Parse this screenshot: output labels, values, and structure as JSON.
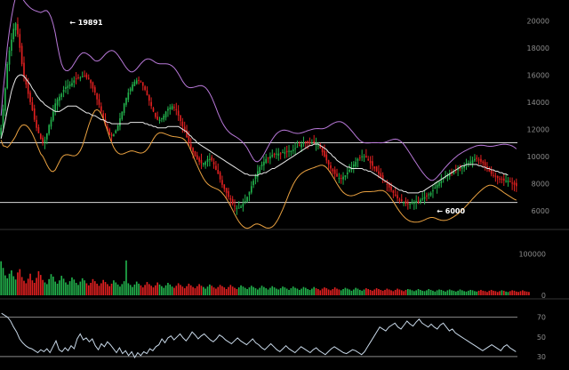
{
  "chart_data": [
    {
      "type": "candlestick",
      "panel": "price",
      "ylim": [
        5000,
        21000
      ],
      "yticks": [
        "20000",
        "18000",
        "16000",
        "14000",
        "12000",
        "10000",
        "8000",
        "6000"
      ],
      "grid": false,
      "horizontal_levels": [
        11000,
        6600
      ],
      "annotations": [
        {
          "text": "← 19891",
          "bar": 32,
          "value": 19891
        },
        {
          "text": "← 6000",
          "bar": 208,
          "value": 6000
        }
      ],
      "close": [
        12100,
        13500,
        15000,
        16800,
        17800,
        18600,
        19400,
        19800,
        19000,
        18000,
        16800,
        15900,
        15300,
        14600,
        14000,
        13400,
        12700,
        12100,
        11700,
        11300,
        11000,
        11200,
        11700,
        12300,
        12700,
        13300,
        13900,
        14200,
        14400,
        14600,
        14900,
        15100,
        15200,
        15300,
        15400,
        15600,
        15700,
        15800,
        15800,
        15900,
        15900,
        15800,
        15700,
        15400,
        15000,
        14700,
        14200,
        13800,
        13300,
        12800,
        12300,
        11900,
        11600,
        11500,
        11600,
        11900,
        12300,
        12800,
        13300,
        13900,
        14300,
        14700,
        15000,
        15300,
        15500,
        15600,
        15600,
        15500,
        15200,
        14900,
        14500,
        14100,
        13700,
        13300,
        12900,
        12700,
        12700,
        12800,
        13000,
        13300,
        13500,
        13600,
        13700,
        13600,
        13400,
        13000,
        12600,
        12200,
        11800,
        11400,
        11000,
        10600,
        10300,
        10000,
        9800,
        9600,
        9500,
        9500,
        9600,
        9800,
        9800,
        9700,
        9400,
        9000,
        8700,
        8300,
        7900,
        7600,
        7300,
        7000,
        6800,
        6500,
        6300,
        6200,
        6200,
        6300,
        6500,
        6700,
        7000,
        7400,
        7800,
        8200,
        8600,
        8900,
        9200,
        9400,
        9600,
        9800,
        9900,
        10000,
        10100,
        10100,
        10200,
        10200,
        10200,
        10300,
        10300,
        10300,
        10400,
        10400,
        10500,
        10600,
        10700,
        10800,
        10900,
        11000,
        11000,
        11000,
        11000,
        11000,
        11000,
        10900,
        10800,
        10600,
        10300,
        10000,
        9700,
        9400,
        9100,
        8900,
        8700,
        8500,
        8400,
        8400,
        8500,
        8600,
        8800,
        9000,
        9200,
        9400,
        9600,
        9800,
        9900,
        10000,
        10000,
        9900,
        9700,
        9500,
        9300,
        9100,
        8900,
        8700,
        8500,
        8300,
        8100,
        7900,
        7700,
        7500,
        7300,
        7100,
        6900,
        6800,
        6700,
        6600,
        6500,
        6500,
        6500,
        6600,
        6600,
        6700,
        6700,
        6800,
        6900,
        7000,
        7100,
        7200,
        7300,
        7500,
        7700,
        7900,
        8100,
        8200,
        8400,
        8500,
        8600,
        8700,
        8800,
        8900,
        9000,
        9100,
        9100,
        9200,
        9300,
        9400,
        9500,
        9600,
        9700,
        9800,
        9800,
        9700,
        9600,
        9500,
        9300,
        9100,
        8900,
        8700,
        8600,
        8500,
        8400,
        8300,
        8300,
        8200,
        8200,
        8200,
        8100,
        8000,
        7900,
        7800
      ],
      "ma_line": [
        11300,
        11900,
        12600,
        13400,
        14100,
        14800,
        15300,
        15700,
        15900,
        16000,
        16000,
        15900,
        15700,
        15500,
        15300,
        15000,
        14800,
        14500,
        14300,
        14100,
        14000,
        13800,
        13700,
        13600,
        13500,
        13400,
        13300,
        13300,
        13300,
        13400,
        13500,
        13600,
        13700,
        13700,
        13700,
        13700,
        13700,
        13600,
        13500,
        13400,
        13300,
        13200,
        13200,
        13100,
        13000,
        13000,
        12900,
        12800,
        12700,
        12700,
        12600,
        12500,
        12500,
        12400,
        12400,
        12400,
        12400,
        12400,
        12400,
        12400,
        12400,
        12400,
        12500,
        12500,
        12500,
        12500,
        12500,
        12500,
        12500,
        12400,
        12400,
        12300,
        12300,
        12200,
        12200,
        12100,
        12100,
        12100,
        12100,
        12100,
        12200,
        12200,
        12200,
        12200,
        12200,
        12200,
        12100,
        12000,
        11900,
        11800,
        11600,
        11500,
        11300,
        11200,
        11000,
        10900,
        10800,
        10700,
        10600,
        10500,
        10400,
        10300,
        10200,
        10100,
        10000,
        9900,
        9800,
        9700,
        9600,
        9500,
        9400,
        9300,
        9200,
        9100,
        9000,
        8900,
        8800,
        8700,
        8700,
        8600,
        8600,
        8600,
        8600,
        8600,
        8700,
        8700,
        8800,
        8800,
        8900,
        9000,
        9100,
        9100,
        9200,
        9300,
        9400,
        9500,
        9600,
        9700,
        9800,
        9900,
        10000,
        10100,
        10200,
        10300,
        10400,
        10500,
        10600,
        10700,
        10800,
        10800,
        10900,
        10900,
        10900,
        10800,
        10700,
        10600,
        10500,
        10300,
        10200,
        10000,
        9900,
        9700,
        9600,
        9500,
        9400,
        9300,
        9200,
        9200,
        9100,
        9100,
        9100,
        9100,
        9100,
        9100,
        9000,
        9000,
        8900,
        8900,
        8800,
        8700,
        8600,
        8500,
        8400,
        8300,
        8200,
        8100,
        8000,
        7900,
        7800,
        7700,
        7600,
        7500,
        7500,
        7400,
        7400,
        7300,
        7300,
        7300,
        7300,
        7300,
        7300,
        7400,
        7400,
        7500,
        7600,
        7700,
        7800,
        7900,
        8000,
        8100,
        8200,
        8300,
        8400,
        8500,
        8600,
        8700,
        8800,
        8900,
        9000,
        9100,
        9200,
        9300,
        9300,
        9400,
        9400,
        9400,
        9400,
        9400,
        9400,
        9300,
        9300,
        9200,
        9200,
        9100,
        9100,
        9000,
        9000,
        8900,
        8900,
        8800,
        8800,
        8700,
        8700,
        8600
      ]
    },
    {
      "type": "bar",
      "panel": "volume",
      "ylim": [
        0,
        150000
      ],
      "yticks": [
        "100000",
        "0"
      ],
      "values": [
        82000,
        66000,
        48000,
        41000,
        52000,
        60000,
        46000,
        38000,
        55000,
        63000,
        44000,
        35000,
        29000,
        40000,
        52000,
        36000,
        30000,
        42000,
        58000,
        49000,
        37000,
        31000,
        27000,
        39000,
        51000,
        45000,
        33000,
        28000,
        36000,
        47000,
        40000,
        31000,
        26000,
        34000,
        43000,
        38000,
        30000,
        25000,
        33000,
        41000,
        36000,
        29000,
        24000,
        30000,
        39000,
        34000,
        28000,
        23000,
        29000,
        37000,
        32000,
        27000,
        22000,
        28000,
        36000,
        31000,
        26000,
        21000,
        27000,
        34000,
        84000,
        29000,
        25000,
        20000,
        26000,
        33000,
        28000,
        24000,
        19000,
        25000,
        32000,
        27000,
        23000,
        19000,
        24000,
        31000,
        26000,
        22000,
        18000,
        24000,
        30000,
        26000,
        21000,
        18000,
        23000,
        29000,
        25000,
        21000,
        17000,
        22000,
        28000,
        24000,
        20000,
        17000,
        22000,
        27000,
        23000,
        20000,
        16000,
        21000,
        26000,
        23000,
        19000,
        16000,
        20000,
        25000,
        22000,
        19000,
        15000,
        20000,
        25000,
        21000,
        18000,
        15000,
        19000,
        24000,
        21000,
        18000,
        15000,
        19000,
        23000,
        20000,
        17000,
        14000,
        18000,
        23000,
        20000,
        17000,
        14000,
        18000,
        22000,
        19000,
        16000,
        14000,
        17000,
        21000,
        19000,
        16000,
        13000,
        17000,
        21000,
        18000,
        16000,
        13000,
        16000,
        20000,
        18000,
        15000,
        13000,
        16000,
        20000,
        17000,
        15000,
        12000,
        16000,
        19000,
        17000,
        14000,
        12000,
        15000,
        19000,
        16000,
        14000,
        12000,
        15000,
        18000,
        16000,
        14000,
        11000,
        14000,
        18000,
        16000,
        13000,
        11000,
        14000,
        17000,
        15000,
        13000,
        11000,
        14000,
        17000,
        15000,
        13000,
        11000,
        13000,
        16000,
        14000,
        12000,
        10000,
        13000,
        16000,
        14000,
        12000,
        10000,
        13000,
        15000,
        14000,
        12000,
        10000,
        12000,
        15000,
        13000,
        11000,
        10000,
        12000,
        15000,
        13000,
        11000,
        9000,
        12000,
        14000,
        13000,
        11000,
        9000,
        12000,
        14000,
        12000,
        11000,
        9000,
        11000,
        14000,
        12000,
        10000,
        9000,
        11000,
        13000,
        12000,
        10000,
        9000,
        11000,
        13000,
        11000,
        10000,
        8000,
        11000,
        13000,
        11000,
        10000,
        8000,
        10000,
        12000,
        11000,
        9000,
        8000,
        10000,
        12000,
        11000,
        9000,
        8000,
        10000,
        12000,
        10000,
        9000,
        8000
      ]
    },
    {
      "type": "line",
      "panel": "oscillator",
      "ylim": [
        20,
        85
      ],
      "yticks": [
        "70",
        "50",
        "30"
      ],
      "horizontal_levels": [
        70,
        30
      ],
      "values": [
        74,
        72,
        70,
        66,
        60,
        55,
        48,
        44,
        41,
        39,
        38,
        36,
        34,
        37,
        35,
        38,
        34,
        40,
        46,
        37,
        35,
        39,
        36,
        41,
        38,
        48,
        53,
        47,
        49,
        45,
        48,
        41,
        37,
        43,
        40,
        45,
        42,
        38,
        34,
        39,
        33,
        36,
        31,
        35,
        29,
        34,
        31,
        35,
        33,
        38,
        36,
        40,
        42,
        48,
        44,
        49,
        51,
        47,
        50,
        53,
        49,
        46,
        50,
        55,
        52,
        48,
        51,
        53,
        50,
        47,
        45,
        48,
        52,
        50,
        47,
        45,
        43,
        46,
        49,
        46,
        44,
        42,
        45,
        48,
        44,
        42,
        39,
        37,
        40,
        43,
        40,
        37,
        35,
        38,
        41,
        38,
        36,
        34,
        37,
        40,
        38,
        36,
        34,
        37,
        39,
        36,
        34,
        32,
        35,
        38,
        40,
        38,
        36,
        34,
        33,
        35,
        37,
        36,
        34,
        32,
        35,
        40,
        45,
        50,
        55,
        60,
        58,
        56,
        60,
        62,
        64,
        60,
        58,
        62,
        66,
        63,
        61,
        65,
        68,
        64,
        62,
        60,
        63,
        60,
        58,
        62,
        64,
        60,
        56,
        58,
        54,
        52,
        50,
        48,
        46,
        44,
        42,
        40,
        38,
        36,
        38,
        40,
        42,
        40,
        38,
        36,
        40,
        42,
        39,
        37,
        35
      ]
    }
  ]
}
